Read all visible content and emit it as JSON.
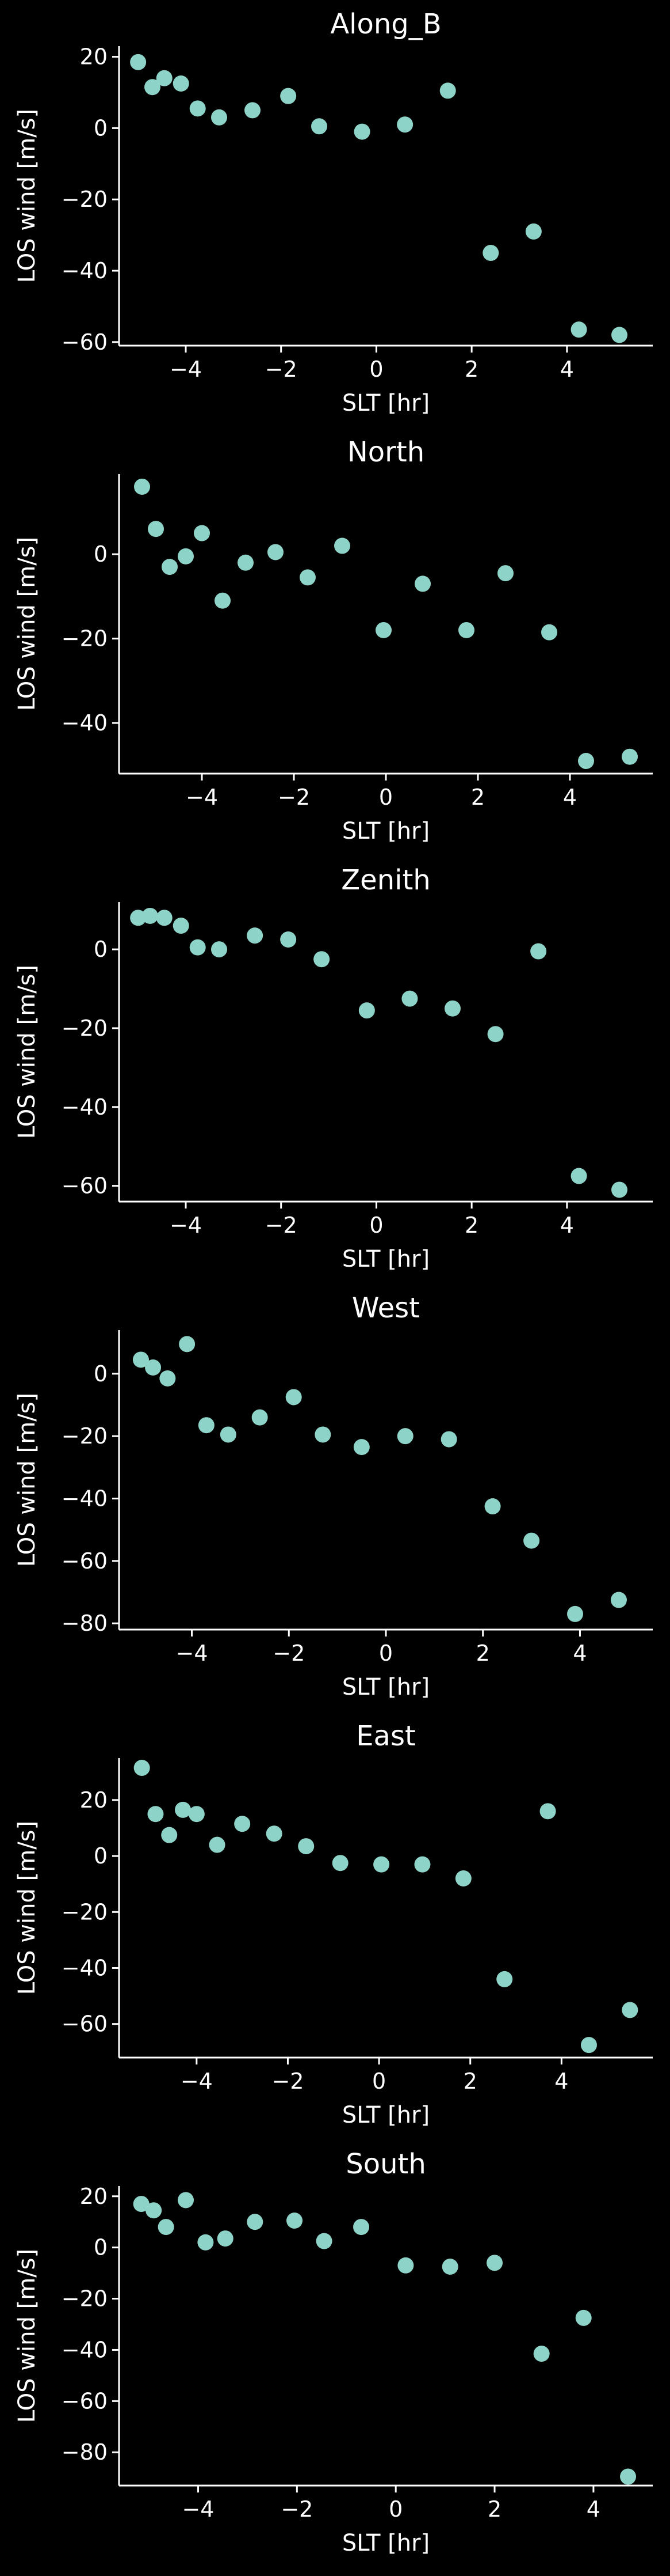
{
  "chart_data": [
    {
      "type": "scatter",
      "title": "Along_B",
      "xlabel": "SLT [hr]",
      "ylabel": "LOS wind [m/s]",
      "xticks": [
        -4,
        -2,
        0,
        2,
        4
      ],
      "yticks": [
        -60,
        -40,
        -20,
        0,
        20
      ],
      "xlim": [
        -5.4,
        5.8
      ],
      "ylim": [
        -61,
        23
      ],
      "marker_color": "#8dd3c7",
      "x": [
        -5.0,
        -4.7,
        -4.45,
        -4.1,
        -3.75,
        -3.3,
        -2.6,
        -1.85,
        -1.2,
        -0.3,
        0.6,
        1.5,
        2.4,
        3.3,
        4.25,
        5.1
      ],
      "y": [
        18.5,
        11.5,
        14,
        12.5,
        5.5,
        3,
        5,
        9,
        0.5,
        -1,
        1,
        10.5,
        -35,
        -29,
        -56.5,
        -58
      ]
    },
    {
      "type": "scatter",
      "title": "North",
      "xlabel": "SLT [hr]",
      "ylabel": "LOS wind [m/s]",
      "xticks": [
        -4,
        -2,
        0,
        2,
        4
      ],
      "yticks": [
        -40,
        -20,
        0
      ],
      "xlim": [
        -5.8,
        5.8
      ],
      "ylim": [
        -52,
        19
      ],
      "marker_color": "#8dd3c7",
      "x": [
        -5.3,
        -5.0,
        -4.7,
        -4.35,
        -4.0,
        -3.55,
        -3.05,
        -2.4,
        -1.7,
        -0.95,
        -0.05,
        0.8,
        1.75,
        2.6,
        3.55,
        4.35,
        5.3
      ],
      "y": [
        16,
        6,
        -3,
        -0.5,
        5,
        -11,
        -2,
        0.5,
        -5.5,
        2,
        -18,
        -7,
        -18,
        -4.5,
        -18.5,
        -49,
        -48
      ]
    },
    {
      "type": "scatter",
      "title": "Zenith",
      "xlabel": "SLT [hr]",
      "ylabel": "LOS wind [m/s]",
      "xticks": [
        -4,
        -2,
        0,
        2,
        4
      ],
      "yticks": [
        -60,
        -40,
        -20,
        0
      ],
      "xlim": [
        -5.4,
        5.8
      ],
      "ylim": [
        -64,
        12
      ],
      "marker_color": "#8dd3c7",
      "x": [
        -5.0,
        -4.75,
        -4.45,
        -4.1,
        -3.75,
        -3.3,
        -2.55,
        -1.85,
        -1.15,
        -0.2,
        0.7,
        1.6,
        2.5,
        3.4,
        4.25,
        5.1
      ],
      "y": [
        8,
        8.5,
        8,
        6,
        0.5,
        0,
        3.5,
        2.5,
        -2.5,
        -15.5,
        -12.5,
        -15,
        -21.5,
        -0.5,
        -57.5,
        -61
      ]
    },
    {
      "type": "scatter",
      "title": "West",
      "xlabel": "SLT [hr]",
      "ylabel": "LOS wind [m/s]",
      "xticks": [
        -4,
        -2,
        0,
        2,
        4
      ],
      "yticks": [
        -80,
        -60,
        -40,
        -20,
        0
      ],
      "xlim": [
        -5.5,
        5.5
      ],
      "ylim": [
        -82,
        14
      ],
      "marker_color": "#8dd3c7",
      "x": [
        -5.05,
        -4.8,
        -4.5,
        -4.1,
        -3.7,
        -3.25,
        -2.6,
        -1.9,
        -1.3,
        -0.5,
        0.4,
        1.3,
        2.2,
        3.0,
        3.9,
        4.8
      ],
      "y": [
        4.5,
        2,
        -1.5,
        9.5,
        -16.5,
        -19.5,
        -14,
        -7.5,
        -19.5,
        -23.5,
        -20,
        -21,
        -42.5,
        -53.5,
        -77,
        -72.5
      ]
    },
    {
      "type": "scatter",
      "title": "East",
      "xlabel": "SLT [hr]",
      "ylabel": "LOS wind [m/s]",
      "xticks": [
        -4,
        -2,
        0,
        2,
        4
      ],
      "yticks": [
        -60,
        -40,
        -20,
        0,
        20
      ],
      "xlim": [
        -5.7,
        6.0
      ],
      "ylim": [
        -72,
        35
      ],
      "marker_color": "#8dd3c7",
      "x": [
        -5.2,
        -4.9,
        -4.6,
        -4.3,
        -4.0,
        -3.55,
        -3.0,
        -2.3,
        -1.6,
        -0.85,
        0.05,
        0.95,
        1.85,
        2.75,
        3.7,
        4.6,
        5.5
      ],
      "y": [
        31.5,
        15,
        7.5,
        16.5,
        15,
        4,
        11.5,
        8,
        3.5,
        -2.5,
        -3,
        -3,
        -8,
        -44,
        16,
        -67.5,
        -55
      ]
    },
    {
      "type": "scatter",
      "title": "South",
      "xlabel": "SLT [hr]",
      "ylabel": "LOS wind [m/s]",
      "xticks": [
        -4,
        -2,
        0,
        2,
        4
      ],
      "yticks": [
        -80,
        -60,
        -40,
        -20,
        0,
        20
      ],
      "xlim": [
        -5.6,
        5.2
      ],
      "ylim": [
        -93,
        24
      ],
      "marker_color": "#8dd3c7",
      "x": [
        -5.15,
        -4.9,
        -4.65,
        -4.25,
        -3.85,
        -3.45,
        -2.85,
        -2.05,
        -1.45,
        -0.7,
        0.2,
        1.1,
        2.0,
        2.95,
        3.8,
        4.7
      ],
      "y": [
        17,
        14.5,
        8,
        18.5,
        2,
        3.5,
        10,
        10.5,
        2.5,
        8,
        -7,
        -7.5,
        -6,
        -41.5,
        -27.5,
        -89.5
      ]
    }
  ]
}
